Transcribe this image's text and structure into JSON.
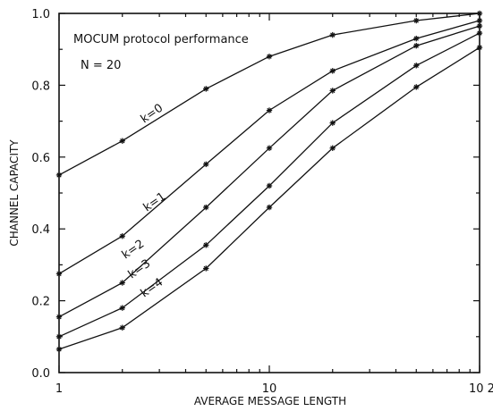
{
  "chart_data": {
    "type": "line",
    "x_scale": "log",
    "xlim": [
      1,
      100
    ],
    "ylim": [
      0,
      1
    ],
    "xlabel": "AVERAGE MESSAGE LENGTH",
    "ylabel": "CHANNEL CAPACITY",
    "x_ticks": [
      1,
      10,
      100
    ],
    "x_tick_labels": [
      "1",
      "10",
      "10 2"
    ],
    "y_ticks": [
      0,
      0.2,
      0.4,
      0.6,
      0.8,
      1.0
    ],
    "y_tick_labels": [
      "0.0",
      "0.2",
      "0.4",
      "0.6",
      "0.8",
      "1.0"
    ],
    "annotations": [
      "MOCUM protocol performance",
      "N = 20"
    ],
    "grid": false,
    "x": [
      1,
      2,
      5,
      10,
      20,
      50,
      100
    ],
    "series": [
      {
        "name": "k=0",
        "values": [
          0.55,
          0.645,
          0.79,
          0.88,
          0.94,
          0.98,
          1.0
        ]
      },
      {
        "name": "k=1",
        "values": [
          0.275,
          0.38,
          0.58,
          0.73,
          0.84,
          0.93,
          0.98
        ]
      },
      {
        "name": "k=2",
        "values": [
          0.155,
          0.25,
          0.46,
          0.625,
          0.785,
          0.91,
          0.965
        ]
      },
      {
        "name": "k=3",
        "values": [
          0.1,
          0.18,
          0.355,
          0.52,
          0.695,
          0.855,
          0.945
        ]
      },
      {
        "name": "k=4",
        "values": [
          0.065,
          0.125,
          0.29,
          0.46,
          0.625,
          0.795,
          0.905
        ]
      }
    ]
  }
}
